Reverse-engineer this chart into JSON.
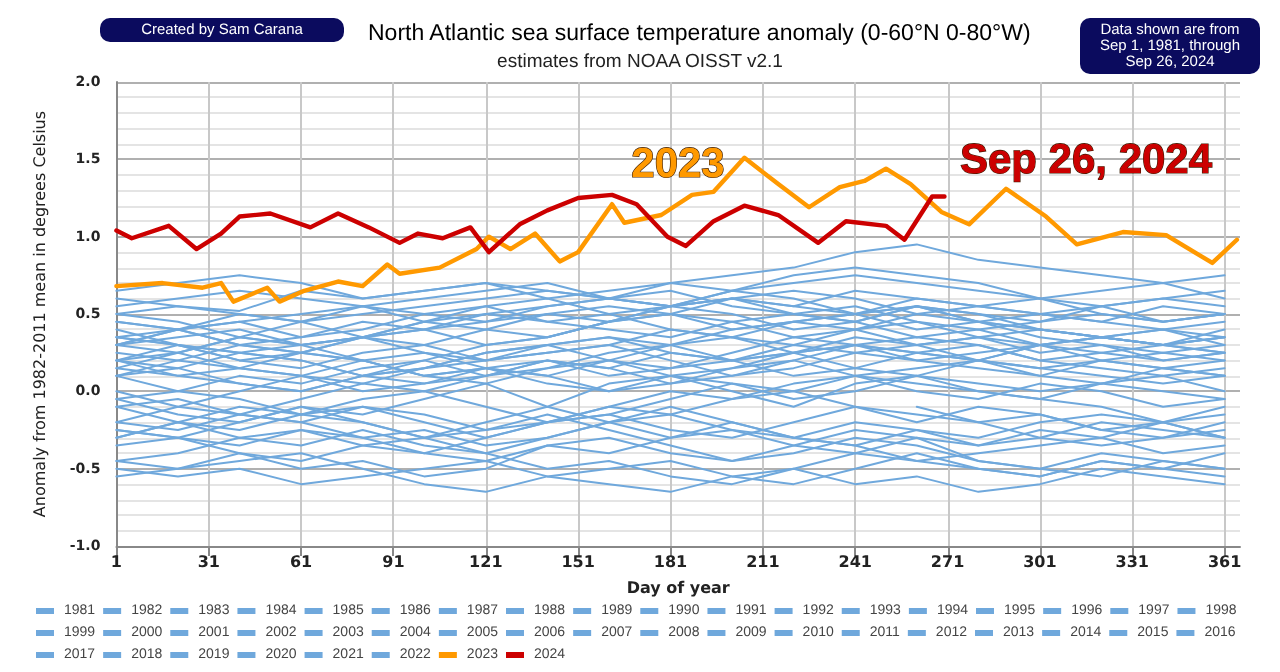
{
  "chart_data": {
    "type": "line",
    "title": "North Atlantic sea surface temperature anomaly (0-60°N 0-80°W)",
    "subtitle": "estimates from NOAA OISST v2.1",
    "xlabel": "Day of year",
    "ylabel": "Anomaly from 1982-2011 mean in degrees Celsius",
    "annotations": [
      "Created by Sam Carana",
      "Data shown are from Sep 1, 1981, through Sep 26, 2024",
      "2023",
      "Sep 26, 2024"
    ],
    "x": [
      1,
      21,
      41,
      61,
      81,
      101,
      121,
      141,
      161,
      181,
      201,
      221,
      241,
      261,
      281,
      301,
      321,
      341,
      361
    ],
    "xlim": [
      1,
      366
    ],
    "xticks": [
      1,
      31,
      61,
      91,
      121,
      151,
      181,
      211,
      241,
      271,
      301,
      331,
      361
    ],
    "ylim": [
      -1,
      2
    ],
    "yticks": [
      {
        "value": -1,
        "label": "-1.0"
      },
      {
        "value": -0.9,
        "label": null
      },
      {
        "value": -0.8,
        "label": null
      },
      {
        "value": -0.7,
        "label": null
      },
      {
        "value": -0.6,
        "label": null
      },
      {
        "value": -0.5,
        "label": "-0.5"
      },
      {
        "value": -0.4,
        "label": null
      },
      {
        "value": -0.3,
        "label": null
      },
      {
        "value": -0.2,
        "label": null
      },
      {
        "value": -0.1,
        "label": null
      },
      {
        "value": 0,
        "label": "0.0"
      },
      {
        "value": 0.1,
        "label": null
      },
      {
        "value": 0.2,
        "label": null
      },
      {
        "value": 0.3,
        "label": null
      },
      {
        "value": 0.4,
        "label": null
      },
      {
        "value": 0.5,
        "label": "0.5"
      },
      {
        "value": 0.6,
        "label": null
      },
      {
        "value": 0.7,
        "label": null
      },
      {
        "value": 0.8,
        "label": null
      },
      {
        "value": 0.9,
        "label": null
      },
      {
        "value": 1,
        "label": "1.0"
      },
      {
        "value": 1.1,
        "label": null
      },
      {
        "value": 1.2,
        "label": null
      },
      {
        "value": 1.3,
        "label": null
      },
      {
        "value": 1.4,
        "label": null
      },
      {
        "value": 1.5,
        "label": "1.5"
      },
      {
        "value": 1.6,
        "label": null
      },
      {
        "value": 1.7,
        "label": null
      },
      {
        "value": 1.8,
        "label": null
      },
      {
        "value": 1.9,
        "label": null
      },
      {
        "value": 2,
        "label": "2.0"
      }
    ],
    "grid": true,
    "legend": "bottom",
    "marker": "none",
    "line_style": "solid",
    "series": [
      {
        "name": "1981",
        "color": "#6fa8dc",
        "values": [
          null,
          null,
          null,
          null,
          null,
          null,
          null,
          null,
          null,
          null,
          null,
          null,
          null,
          -0.1,
          -0.2,
          -0.15,
          -0.25,
          -0.3,
          -0.2
        ]
      },
      {
        "name": "1982",
        "color": "#6fa8dc",
        "values": [
          -0.25,
          -0.3,
          -0.2,
          -0.1,
          -0.15,
          -0.05,
          0.05,
          -0.1,
          -0.2,
          -0.3,
          -0.25,
          -0.35,
          -0.4,
          -0.3,
          -0.45,
          -0.5,
          -0.4,
          -0.45,
          -0.5
        ]
      },
      {
        "name": "1983",
        "color": "#6fa8dc",
        "values": [
          -0.3,
          -0.2,
          -0.25,
          -0.15,
          -0.2,
          -0.3,
          -0.2,
          -0.1,
          0.05,
          0.1,
          0.0,
          -0.1,
          0.05,
          0.1,
          0.0,
          -0.05,
          -0.1,
          -0.2,
          -0.15
        ]
      },
      {
        "name": "1984",
        "color": "#6fa8dc",
        "values": [
          -0.1,
          -0.2,
          -0.3,
          -0.25,
          -0.35,
          -0.4,
          -0.3,
          -0.2,
          -0.15,
          -0.25,
          -0.3,
          -0.2,
          -0.1,
          -0.15,
          -0.2,
          -0.3,
          -0.35,
          -0.3,
          -0.25
        ]
      },
      {
        "name": "1985",
        "color": "#6fa8dc",
        "values": [
          -0.45,
          -0.5,
          -0.4,
          -0.45,
          -0.35,
          -0.3,
          -0.4,
          -0.5,
          -0.45,
          -0.55,
          -0.6,
          -0.5,
          -0.4,
          -0.45,
          -0.5,
          -0.55,
          -0.45,
          -0.5,
          -0.4
        ]
      },
      {
        "name": "1986",
        "color": "#6fa8dc",
        "values": [
          -0.35,
          -0.3,
          -0.4,
          -0.5,
          -0.45,
          -0.55,
          -0.5,
          -0.35,
          -0.3,
          -0.4,
          -0.45,
          -0.35,
          -0.25,
          -0.3,
          -0.35,
          -0.25,
          -0.3,
          -0.2,
          -0.3
        ]
      },
      {
        "name": "1987",
        "color": "#6fa8dc",
        "values": [
          -0.2,
          -0.25,
          -0.15,
          -0.2,
          -0.1,
          -0.15,
          -0.25,
          -0.2,
          -0.1,
          0.0,
          -0.05,
          0.05,
          0.1,
          0.0,
          -0.05,
          0.05,
          0.0,
          -0.1,
          -0.05
        ]
      },
      {
        "name": "1988",
        "color": "#6fa8dc",
        "values": [
          -0.1,
          -0.05,
          -0.15,
          -0.2,
          -0.3,
          -0.25,
          -0.35,
          -0.3,
          -0.2,
          -0.15,
          -0.25,
          -0.3,
          -0.2,
          -0.25,
          -0.35,
          -0.3,
          -0.2,
          -0.25,
          -0.3
        ]
      },
      {
        "name": "1989",
        "color": "#6fa8dc",
        "values": [
          -0.25,
          -0.3,
          -0.35,
          -0.25,
          -0.3,
          -0.4,
          -0.45,
          -0.35,
          -0.4,
          -0.3,
          -0.2,
          -0.3,
          -0.35,
          -0.45,
          -0.4,
          -0.35,
          -0.3,
          -0.4,
          -0.35
        ]
      },
      {
        "name": "1990",
        "color": "#6fa8dc",
        "values": [
          -0.3,
          -0.2,
          -0.1,
          -0.15,
          -0.05,
          0.0,
          -0.1,
          -0.2,
          -0.15,
          -0.05,
          0.05,
          0.0,
          -0.1,
          -0.2,
          -0.1,
          -0.15,
          -0.25,
          -0.2,
          -0.1
        ]
      },
      {
        "name": "1991",
        "color": "#6fa8dc",
        "values": [
          -0.05,
          -0.15,
          -0.2,
          -0.1,
          -0.2,
          -0.3,
          -0.25,
          -0.15,
          -0.25,
          -0.35,
          -0.45,
          -0.4,
          -0.3,
          -0.35,
          -0.45,
          -0.5,
          -0.55,
          -0.45,
          -0.5
        ]
      },
      {
        "name": "1992",
        "color": "#6fa8dc",
        "values": [
          -0.5,
          -0.55,
          -0.5,
          -0.6,
          -0.55,
          -0.5,
          -0.45,
          -0.55,
          -0.6,
          -0.65,
          -0.55,
          -0.5,
          -0.6,
          -0.55,
          -0.65,
          -0.6,
          -0.5,
          -0.55,
          -0.6
        ]
      },
      {
        "name": "1993",
        "color": "#6fa8dc",
        "values": [
          -0.55,
          -0.5,
          -0.45,
          -0.4,
          -0.5,
          -0.6,
          -0.65,
          -0.55,
          -0.5,
          -0.45,
          -0.55,
          -0.6,
          -0.5,
          -0.4,
          -0.5,
          -0.55,
          -0.45,
          -0.5,
          -0.55
        ]
      },
      {
        "name": "1994",
        "color": "#6fa8dc",
        "values": [
          -0.45,
          -0.4,
          -0.3,
          -0.35,
          -0.25,
          -0.35,
          -0.4,
          -0.3,
          -0.2,
          -0.1,
          -0.2,
          -0.3,
          -0.35,
          -0.25,
          -0.3,
          -0.2,
          -0.15,
          -0.2,
          -0.3
        ]
      },
      {
        "name": "1995",
        "color": "#6fa8dc",
        "values": [
          -0.2,
          -0.1,
          0.0,
          0.1,
          0.05,
          0.15,
          0.2,
          0.25,
          0.3,
          0.2,
          0.1,
          0.15,
          0.25,
          0.3,
          0.2,
          0.15,
          0.2,
          0.25,
          0.2
        ]
      },
      {
        "name": "1996",
        "color": "#6fa8dc",
        "values": [
          0.1,
          0.0,
          -0.05,
          -0.15,
          -0.1,
          -0.2,
          -0.3,
          -0.2,
          -0.1,
          -0.15,
          -0.05,
          0.0,
          0.1,
          0.05,
          0.0,
          -0.05,
          0.05,
          0.1,
          0.0
        ]
      },
      {
        "name": "1997",
        "color": "#6fa8dc",
        "values": [
          0.0,
          -0.1,
          -0.15,
          -0.05,
          0.05,
          0.0,
          0.1,
          0.2,
          0.15,
          0.05,
          0.1,
          0.2,
          0.3,
          0.25,
          0.2,
          0.3,
          0.35,
          0.3,
          0.25
        ]
      },
      {
        "name": "1998",
        "color": "#6fa8dc",
        "values": [
          0.3,
          0.4,
          0.45,
          0.35,
          0.4,
          0.5,
          0.55,
          0.45,
          0.5,
          0.4,
          0.35,
          0.45,
          0.5,
          0.4,
          0.45,
          0.35,
          0.3,
          0.25,
          0.3
        ]
      },
      {
        "name": "1999",
        "color": "#6fa8dc",
        "values": [
          0.25,
          0.2,
          0.15,
          0.1,
          0.2,
          0.25,
          0.15,
          0.1,
          0.2,
          0.3,
          0.35,
          0.25,
          0.3,
          0.35,
          0.3,
          0.2,
          0.25,
          0.3,
          0.35
        ]
      },
      {
        "name": "2000",
        "color": "#6fa8dc",
        "values": [
          0.3,
          0.25,
          0.35,
          0.3,
          0.2,
          0.1,
          0.15,
          0.05,
          0.0,
          0.1,
          0.05,
          -0.05,
          0.0,
          0.1,
          0.05,
          0.0,
          0.05,
          0.0,
          -0.05
        ]
      },
      {
        "name": "2001",
        "color": "#6fa8dc",
        "values": [
          -0.05,
          0.0,
          0.1,
          0.05,
          0.15,
          0.2,
          0.1,
          0.15,
          0.25,
          0.3,
          0.2,
          0.25,
          0.35,
          0.3,
          0.35,
          0.25,
          0.3,
          0.2,
          0.25
        ]
      },
      {
        "name": "2002",
        "color": "#6fa8dc",
        "values": [
          0.2,
          0.3,
          0.25,
          0.2,
          0.1,
          0.15,
          0.25,
          0.3,
          0.2,
          0.15,
          0.25,
          0.35,
          0.3,
          0.2,
          0.25,
          0.3,
          0.2,
          0.15,
          0.2
        ]
      },
      {
        "name": "2003",
        "color": "#6fa8dc",
        "values": [
          0.2,
          0.15,
          0.05,
          0.0,
          0.1,
          0.2,
          0.3,
          0.35,
          0.45,
          0.5,
          0.4,
          0.45,
          0.4,
          0.3,
          0.35,
          0.4,
          0.35,
          0.3,
          0.4
        ]
      },
      {
        "name": "2004",
        "color": "#6fa8dc",
        "values": [
          0.35,
          0.4,
          0.3,
          0.35,
          0.45,
          0.4,
          0.3,
          0.35,
          0.45,
          0.55,
          0.5,
          0.4,
          0.45,
          0.35,
          0.4,
          0.3,
          0.35,
          0.4,
          0.3
        ]
      },
      {
        "name": "2005",
        "color": "#6fa8dc",
        "values": [
          0.3,
          0.35,
          0.4,
          0.3,
          0.35,
          0.45,
          0.55,
          0.6,
          0.5,
          0.55,
          0.6,
          0.55,
          0.5,
          0.6,
          0.55,
          0.5,
          0.45,
          0.4,
          0.45
        ]
      },
      {
        "name": "2006",
        "color": "#6fa8dc",
        "values": [
          0.45,
          0.4,
          0.5,
          0.45,
          0.35,
          0.4,
          0.5,
          0.45,
          0.4,
          0.35,
          0.45,
          0.5,
          0.45,
          0.55,
          0.5,
          0.4,
          0.35,
          0.3,
          0.35
        ]
      },
      {
        "name": "2007",
        "color": "#6fa8dc",
        "values": [
          0.35,
          0.3,
          0.2,
          0.25,
          0.35,
          0.3,
          0.2,
          0.25,
          0.3,
          0.4,
          0.35,
          0.3,
          0.4,
          0.45,
          0.35,
          0.3,
          0.25,
          0.2,
          0.25
        ]
      },
      {
        "name": "2008",
        "color": "#6fa8dc",
        "values": [
          0.2,
          0.1,
          0.15,
          0.25,
          0.2,
          0.1,
          0.05,
          0.15,
          0.2,
          0.1,
          0.15,
          0.25,
          0.3,
          0.25,
          0.2,
          0.3,
          0.35,
          0.3,
          0.25
        ]
      },
      {
        "name": "2009",
        "color": "#6fa8dc",
        "values": [
          0.2,
          0.25,
          0.15,
          0.1,
          0.0,
          0.05,
          0.15,
          0.1,
          0.0,
          0.05,
          0.15,
          0.2,
          0.1,
          0.15,
          0.2,
          0.1,
          0.05,
          0.15,
          0.1
        ]
      },
      {
        "name": "2010",
        "color": "#6fa8dc",
        "values": [
          0.15,
          0.25,
          0.35,
          0.45,
          0.5,
          0.55,
          0.6,
          0.65,
          0.6,
          0.55,
          0.65,
          0.6,
          0.5,
          0.55,
          0.45,
          0.4,
          0.35,
          0.4,
          0.35
        ]
      },
      {
        "name": "2011",
        "color": "#6fa8dc",
        "values": [
          0.35,
          0.3,
          0.2,
          0.15,
          0.25,
          0.3,
          0.4,
          0.35,
          0.45,
          0.5,
          0.45,
          0.35,
          0.4,
          0.5,
          0.45,
          0.4,
          0.35,
          0.3,
          0.35
        ]
      },
      {
        "name": "2012",
        "color": "#6fa8dc",
        "values": [
          0.3,
          0.4,
          0.45,
          0.5,
          0.55,
          0.45,
          0.5,
          0.55,
          0.6,
          0.65,
          0.55,
          0.5,
          0.55,
          0.45,
          0.4,
          0.45,
          0.5,
          0.45,
          0.5
        ]
      },
      {
        "name": "2013",
        "color": "#6fa8dc",
        "values": [
          0.4,
          0.3,
          0.25,
          0.2,
          0.1,
          0.05,
          0.1,
          0.2,
          0.15,
          0.25,
          0.2,
          0.1,
          0.15,
          0.25,
          0.3,
          0.2,
          0.15,
          0.1,
          0.15
        ]
      },
      {
        "name": "2014",
        "color": "#6fa8dc",
        "values": [
          0.15,
          0.1,
          0.05,
          0.0,
          0.1,
          0.15,
          0.25,
          0.3,
          0.35,
          0.3,
          0.4,
          0.45,
          0.5,
          0.55,
          0.45,
          0.5,
          0.55,
          0.45,
          0.5
        ]
      },
      {
        "name": "2015",
        "color": "#6fa8dc",
        "values": [
          0.5,
          0.45,
          0.35,
          0.3,
          0.35,
          0.25,
          0.2,
          0.3,
          0.35,
          0.25,
          0.2,
          0.3,
          0.25,
          0.2,
          0.15,
          0.1,
          0.2,
          0.15,
          0.1
        ]
      },
      {
        "name": "2016",
        "color": "#6fa8dc",
        "values": [
          0.1,
          0.15,
          0.25,
          0.3,
          0.35,
          0.4,
          0.45,
          0.5,
          0.45,
          0.55,
          0.6,
          0.5,
          0.45,
          0.55,
          0.5,
          0.45,
          0.55,
          0.6,
          0.55
        ]
      },
      {
        "name": "2017",
        "color": "#6fa8dc",
        "values": [
          0.55,
          0.6,
          0.65,
          0.6,
          0.55,
          0.6,
          0.65,
          0.7,
          0.6,
          0.55,
          0.6,
          0.65,
          0.6,
          0.5,
          0.55,
          0.6,
          0.5,
          0.45,
          0.5
        ]
      },
      {
        "name": "2018",
        "color": "#6fa8dc",
        "values": [
          0.45,
          0.4,
          0.3,
          0.25,
          0.2,
          0.1,
          0.15,
          0.2,
          0.1,
          0.15,
          0.2,
          0.25,
          0.15,
          0.1,
          0.2,
          0.15,
          0.1,
          0.05,
          0.1
        ]
      },
      {
        "name": "2019",
        "color": "#6fa8dc",
        "values": [
          0.1,
          0.2,
          0.3,
          0.25,
          0.35,
          0.45,
          0.4,
          0.5,
          0.55,
          0.5,
          0.6,
          0.55,
          0.65,
          0.6,
          0.55,
          0.5,
          0.45,
          0.55,
          0.5
        ]
      },
      {
        "name": "2020",
        "color": "#6fa8dc",
        "values": [
          0.5,
          0.55,
          0.52,
          0.65,
          0.6,
          0.65,
          0.7,
          0.6,
          0.65,
          0.7,
          0.65,
          0.75,
          0.8,
          0.75,
          0.7,
          0.6,
          0.65,
          0.7,
          0.6
        ]
      },
      {
        "name": "2021",
        "color": "#6fa8dc",
        "values": [
          0.6,
          0.55,
          0.5,
          0.45,
          0.55,
          0.5,
          0.45,
          0.55,
          0.6,
          0.55,
          0.65,
          0.7,
          0.75,
          0.7,
          0.65,
          0.6,
          0.55,
          0.6,
          0.65
        ]
      },
      {
        "name": "2022",
        "color": "#6fa8dc",
        "values": [
          0.65,
          0.7,
          0.75,
          0.7,
          0.6,
          0.65,
          0.7,
          0.65,
          0.6,
          0.7,
          0.75,
          0.8,
          0.9,
          0.95,
          0.85,
          0.8,
          0.75,
          0.7,
          0.75
        ]
      },
      {
        "name": "2023",
        "color": "#ff9900",
        "x": [
          1,
          16,
          29,
          35,
          39,
          50,
          54,
          62,
          73,
          81,
          89,
          93,
          106,
          118,
          122,
          129,
          137,
          145,
          151,
          162,
          166,
          178,
          188,
          195,
          205,
          216,
          226,
          236,
          244,
          251,
          259,
          269,
          278,
          290,
          303,
          313,
          328,
          342,
          357,
          365
        ],
        "values": [
          0.68,
          0.7,
          0.67,
          0.7,
          0.58,
          0.67,
          0.58,
          0.65,
          0.71,
          0.68,
          0.82,
          0.76,
          0.8,
          0.92,
          1.0,
          0.92,
          1.02,
          0.84,
          0.9,
          1.21,
          1.09,
          1.14,
          1.27,
          1.29,
          1.51,
          1.34,
          1.19,
          1.32,
          1.36,
          1.44,
          1.34,
          1.16,
          1.08,
          1.31,
          1.13,
          0.95,
          1.03,
          1.01,
          0.83,
          0.98
        ]
      },
      {
        "name": "2024",
        "color": "#cc0000",
        "x": [
          1,
          6,
          18,
          27,
          35,
          41,
          51,
          64,
          73,
          83,
          93,
          99,
          107,
          116,
          122,
          132,
          141,
          151,
          162,
          170,
          180,
          186,
          195,
          205,
          216,
          229,
          238,
          251,
          257,
          266,
          270
        ],
        "values": [
          1.04,
          0.99,
          1.07,
          0.92,
          1.02,
          1.13,
          1.15,
          1.06,
          1.15,
          1.06,
          0.96,
          1.02,
          0.99,
          1.06,
          0.9,
          1.08,
          1.17,
          1.25,
          1.27,
          1.21,
          1.0,
          0.94,
          1.1,
          1.2,
          1.14,
          0.96,
          1.1,
          1.07,
          0.98,
          1.26,
          1.26
        ]
      }
    ]
  }
}
